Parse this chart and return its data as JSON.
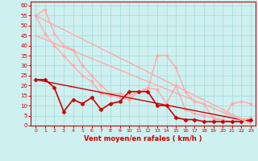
{
  "background_color": "#cff0f0",
  "grid_color": "#aadddd",
  "xlabel": "Vent moyen/en rafales ( km/h )",
  "xlabel_color": "#cc0000",
  "tick_color": "#cc0000",
  "xlim": [
    -0.5,
    23.5
  ],
  "ylim": [
    0,
    62
  ],
  "yticks": [
    0,
    5,
    10,
    15,
    20,
    25,
    30,
    35,
    40,
    45,
    50,
    55,
    60
  ],
  "xticks": [
    0,
    1,
    2,
    3,
    4,
    5,
    6,
    7,
    8,
    9,
    10,
    11,
    12,
    13,
    14,
    15,
    16,
    17,
    18,
    19,
    20,
    21,
    22,
    23
  ],
  "lines": [
    {
      "x": [
        0,
        1,
        2,
        3,
        4,
        5,
        6,
        7,
        8,
        9,
        10,
        11,
        12,
        13,
        14,
        15,
        16,
        17,
        18,
        19,
        20,
        21,
        22,
        23
      ],
      "y": [
        55,
        58,
        46,
        40,
        38,
        30,
        25,
        20,
        16,
        16,
        15,
        17,
        18,
        35,
        35,
        29,
        17,
        12,
        11,
        3,
        3,
        11,
        12,
        11
      ],
      "color": "#ffaaaa",
      "linewidth": 1.0,
      "marker": "D",
      "markersize": 2.0
    },
    {
      "x": [
        0,
        1,
        2,
        3,
        4,
        5,
        6,
        7,
        8,
        9,
        10,
        11,
        12,
        13,
        14,
        15,
        16,
        17,
        18,
        19,
        20,
        21,
        22,
        23
      ],
      "y": [
        55,
        46,
        40,
        35,
        30,
        25,
        22,
        16,
        15,
        14,
        13,
        17,
        19,
        18,
        11,
        20,
        8,
        6,
        5,
        4,
        3,
        2,
        3,
        4
      ],
      "color": "#ffaaaa",
      "linewidth": 1.0,
      "marker": "D",
      "markersize": 2.0
    },
    {
      "x": [
        0,
        1,
        2,
        3,
        4,
        5,
        6,
        7,
        8,
        9,
        10,
        11,
        12,
        13,
        14,
        15,
        16,
        17,
        18,
        19,
        20,
        21,
        22,
        23
      ],
      "y": [
        23,
        23,
        19,
        7,
        13,
        11,
        14,
        8,
        11,
        12,
        17,
        17,
        17,
        10,
        10,
        4,
        3,
        3,
        2,
        2,
        2,
        2,
        2,
        3
      ],
      "color": "#cc0000",
      "linewidth": 1.2,
      "marker": "D",
      "markersize": 2.5
    },
    {
      "x": [
        0,
        23
      ],
      "y": [
        23,
        2
      ],
      "color": "#cc0000",
      "linewidth": 1.0,
      "marker": null,
      "markersize": 0
    },
    {
      "x": [
        0,
        23
      ],
      "y": [
        55,
        1
      ],
      "color": "#ffaaaa",
      "linewidth": 1.0,
      "marker": null,
      "markersize": 0
    },
    {
      "x": [
        0,
        23
      ],
      "y": [
        45,
        1
      ],
      "color": "#ffaaaa",
      "linewidth": 1.0,
      "marker": null,
      "markersize": 0
    }
  ]
}
